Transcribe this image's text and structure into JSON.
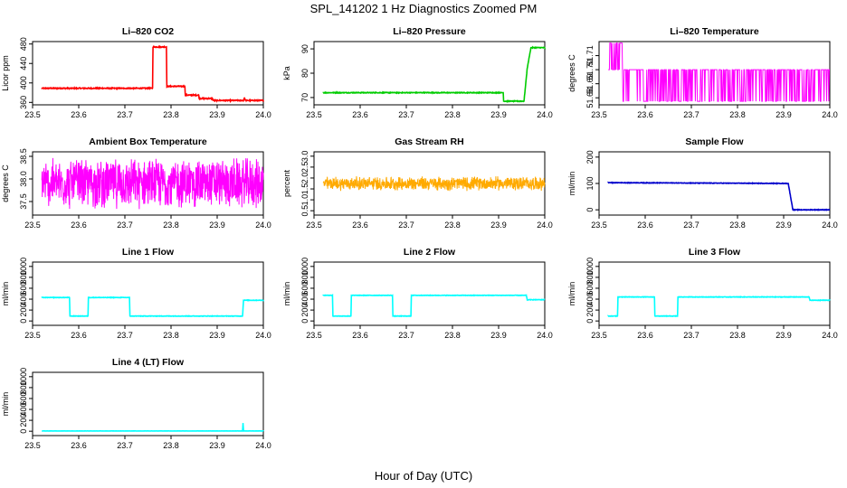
{
  "title": "SPL_141202  1 Hz Diagnostics Zoomed PM",
  "xlabel": "Hour of Day (UTC)",
  "chart_data": [
    {
      "type": "line",
      "title": "Li–820 CO2",
      "ylabel": "Licor ppm",
      "color": "#ff0000",
      "xlim": [
        23.5,
        24.0
      ],
      "ylim": [
        355,
        485
      ],
      "xticks": [
        "23.5",
        "23.6",
        "23.7",
        "23.8",
        "23.9",
        "24.0"
      ],
      "yticks": [
        {
          "v": 360,
          "label": "360"
        },
        {
          "v": 400,
          "label": "400"
        },
        {
          "v": 440,
          "label": "440"
        },
        {
          "v": 480,
          "label": "480"
        }
      ],
      "x": [
        23.52,
        23.76,
        23.761,
        23.79,
        23.791,
        23.83,
        23.831,
        23.86,
        23.861,
        23.89,
        23.891,
        23.957,
        23.959,
        23.961,
        24.0
      ],
      "y": [
        389,
        389,
        474,
        474,
        393,
        393,
        375,
        375,
        368,
        368,
        364,
        364,
        370,
        364,
        364
      ],
      "noise": 1
    },
    {
      "type": "line",
      "title": "Li–820 Pressure",
      "ylabel": "kPa",
      "color": "#00cc00",
      "xlim": [
        23.5,
        24.0
      ],
      "ylim": [
        67,
        93
      ],
      "xticks": [
        "23.5",
        "23.6",
        "23.7",
        "23.8",
        "23.9",
        "24.0"
      ],
      "yticks": [
        {
          "v": 70,
          "label": "70"
        },
        {
          "v": 80,
          "label": "80"
        },
        {
          "v": 90,
          "label": "90"
        }
      ],
      "x": [
        23.52,
        23.91,
        23.911,
        23.955,
        23.962,
        23.97,
        24.0
      ],
      "y": [
        72,
        72,
        68.5,
        68.5,
        82,
        90.5,
        90.5
      ],
      "noise": 0.15
    },
    {
      "type": "line",
      "title": "Li–820 Temperature",
      "ylabel": "degrees C",
      "color": "#ff00ff",
      "xlim": [
        23.5,
        24.0
      ],
      "ylim": [
        51.675,
        51.72
      ],
      "xticks": [
        "23.5",
        "23.6",
        "23.7",
        "23.8",
        "23.9",
        "24.0"
      ],
      "yticks": [
        {
          "v": 51.68,
          "label": "51.68"
        },
        {
          "v": 51.69,
          "label": "51.69"
        },
        {
          "v": 51.7,
          "label": "51.70"
        },
        {
          "v": 51.71,
          "label": "51.71"
        }
      ],
      "levels": [
        51.6775,
        51.7,
        51.719
      ],
      "transitions": [
        23.52,
        23.55,
        23.6,
        23.63,
        23.65,
        23.7,
        23.74,
        23.78,
        23.8,
        23.83,
        23.86,
        23.9,
        23.93,
        23.97,
        24.0
      ]
    },
    {
      "type": "line",
      "title": "Ambient Box Temperature",
      "ylabel": "degrees C",
      "color": "#ff00ff",
      "xlim": [
        23.5,
        24.0
      ],
      "ylim": [
        37.2,
        38.6
      ],
      "xticks": [
        "23.5",
        "23.6",
        "23.7",
        "23.8",
        "23.9",
        "24.0"
      ],
      "yticks": [
        {
          "v": 37.5,
          "label": "37.5"
        },
        {
          "v": 38.0,
          "label": "38.0"
        },
        {
          "v": 38.5,
          "label": "38.5"
        }
      ],
      "center": 37.9,
      "spread": 0.6
    },
    {
      "type": "line",
      "title": "Gas Stream RH",
      "ylabel": "percent",
      "color": "#ffaa00",
      "xlim": [
        23.5,
        24.0
      ],
      "ylim": [
        0.3,
        3.2
      ],
      "xticks": [
        "23.5",
        "23.6",
        "23.7",
        "23.8",
        "23.9",
        "24.0"
      ],
      "yticks": [
        {
          "v": 0.5,
          "label": "0.5"
        },
        {
          "v": 1.0,
          "label": "1.0"
        },
        {
          "v": 1.5,
          "label": "1.5"
        },
        {
          "v": 2.0,
          "label": "2.0"
        },
        {
          "v": 2.5,
          "label": "2.5"
        },
        {
          "v": 3.0,
          "label": "3.0"
        }
      ],
      "center": 1.75,
      "spread": 0.35
    },
    {
      "type": "line",
      "title": "Sample Flow",
      "ylabel": "ml/min",
      "color": "#0000cc",
      "xlim": [
        23.5,
        24.0
      ],
      "ylim": [
        -20,
        220
      ],
      "xticks": [
        "23.5",
        "23.6",
        "23.7",
        "23.8",
        "23.9",
        "24.0"
      ],
      "yticks": [
        {
          "v": 0,
          "label": "0"
        },
        {
          "v": 100,
          "label": "100"
        },
        {
          "v": 200,
          "label": "200"
        }
      ],
      "x": [
        23.52,
        23.91,
        23.92,
        24.0
      ],
      "y": [
        103,
        100,
        0,
        0
      ],
      "noise": 1
    },
    {
      "type": "line",
      "title": "Line 1 Flow",
      "ylabel": "ml/min",
      "color": "#00ffff",
      "xlim": [
        23.5,
        24.0
      ],
      "ylim": [
        -80,
        1080
      ],
      "xticks": [
        "23.5",
        "23.6",
        "23.7",
        "23.8",
        "23.9",
        "24.0"
      ],
      "yticks": [
        {
          "v": 0,
          "label": "0"
        },
        {
          "v": 200,
          "label": "200"
        },
        {
          "v": 400,
          "label": "400"
        },
        {
          "v": 600,
          "label": "600"
        },
        {
          "v": 800,
          "label": "800"
        },
        {
          "v": 1000,
          "label": "1000"
        }
      ],
      "x": [
        23.52,
        23.58,
        23.581,
        23.62,
        23.621,
        23.71,
        23.711,
        23.955,
        23.957,
        24.0
      ],
      "y": [
        430,
        430,
        90,
        90,
        430,
        430,
        90,
        90,
        380,
        380
      ],
      "noise": 4
    },
    {
      "type": "line",
      "title": "Line 2 Flow",
      "ylabel": "ml/min",
      "color": "#00ffff",
      "xlim": [
        23.5,
        24.0
      ],
      "ylim": [
        -80,
        1080
      ],
      "xticks": [
        "23.5",
        "23.6",
        "23.7",
        "23.8",
        "23.9",
        "24.0"
      ],
      "yticks": [
        {
          "v": 0,
          "label": "0"
        },
        {
          "v": 200,
          "label": "200"
        },
        {
          "v": 400,
          "label": "400"
        },
        {
          "v": 600,
          "label": "600"
        },
        {
          "v": 800,
          "label": "800"
        },
        {
          "v": 1000,
          "label": "1000"
        }
      ],
      "x": [
        23.52,
        23.54,
        23.541,
        23.58,
        23.581,
        23.67,
        23.671,
        23.71,
        23.711,
        23.96,
        23.962,
        24.0
      ],
      "y": [
        470,
        470,
        90,
        90,
        470,
        470,
        90,
        90,
        470,
        470,
        390,
        390
      ],
      "noise": 4
    },
    {
      "type": "line",
      "title": "Line 3 Flow",
      "ylabel": "ml/min",
      "color": "#00ffff",
      "xlim": [
        23.5,
        24.0
      ],
      "ylim": [
        -80,
        1080
      ],
      "xticks": [
        "23.5",
        "23.6",
        "23.7",
        "23.8",
        "23.9",
        "24.0"
      ],
      "yticks": [
        {
          "v": 0,
          "label": "0"
        },
        {
          "v": 200,
          "label": "200"
        },
        {
          "v": 400,
          "label": "400"
        },
        {
          "v": 600,
          "label": "600"
        },
        {
          "v": 800,
          "label": "800"
        },
        {
          "v": 1000,
          "label": "1000"
        }
      ],
      "x": [
        23.52,
        23.54,
        23.541,
        23.62,
        23.621,
        23.67,
        23.671,
        23.955,
        23.957,
        24.0
      ],
      "y": [
        90,
        90,
        440,
        440,
        90,
        90,
        440,
        440,
        380,
        380
      ],
      "noise": 4
    },
    {
      "type": "line",
      "title": "Line 4 (LT) Flow",
      "ylabel": "ml/min",
      "color": "#00ffff",
      "xlim": [
        23.5,
        24.0
      ],
      "ylim": [
        -80,
        1080
      ],
      "xticks": [
        "23.5",
        "23.6",
        "23.7",
        "23.8",
        "23.9",
        "24.0"
      ],
      "yticks": [
        {
          "v": 0,
          "label": "0"
        },
        {
          "v": 200,
          "label": "200"
        },
        {
          "v": 400,
          "label": "400"
        },
        {
          "v": 600,
          "label": "600"
        },
        {
          "v": 800,
          "label": "800"
        },
        {
          "v": 1000,
          "label": "1000"
        }
      ],
      "x": [
        23.52,
        23.955,
        23.956,
        23.957,
        24.0
      ],
      "y": [
        5,
        5,
        150,
        5,
        5
      ],
      "noise": 1
    }
  ]
}
